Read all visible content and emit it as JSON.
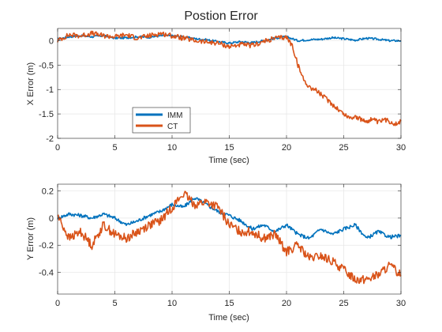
{
  "figure_title": "Postion Error",
  "chart_data": [
    {
      "type": "line",
      "title": "Postion Error",
      "xlabel": "Time (sec)",
      "ylabel": "X Error (m)",
      "xlim": [
        0,
        30
      ],
      "ylim": [
        -2,
        0.25
      ],
      "xticks": [
        0,
        5,
        10,
        15,
        20,
        25,
        30
      ],
      "yticks": [
        -2,
        -1.5,
        -1,
        -0.5,
        0
      ],
      "xtick_labels": [
        "0",
        "5",
        "10",
        "15",
        "20",
        "25",
        "30"
      ],
      "ytick_labels": [
        "-2",
        "-1.5",
        "-1",
        "-0.5",
        "0"
      ],
      "grid": true,
      "legend": {
        "placement": "lower-left",
        "entries": [
          "IMM",
          "CT"
        ]
      },
      "series": [
        {
          "name": "IMM",
          "color": "#0072BD",
          "x": [
            0,
            1,
            2,
            3,
            4,
            5,
            6,
            7,
            8,
            9,
            10,
            11,
            12,
            13,
            14,
            15,
            16,
            17,
            18,
            19,
            20,
            21,
            22,
            23,
            24,
            25,
            26,
            27,
            28,
            29,
            30
          ],
          "y": [
            0.03,
            0.08,
            0.1,
            0.08,
            0.1,
            0.05,
            0.06,
            0.08,
            0.07,
            0.1,
            0.1,
            0.08,
            0.04,
            0.02,
            -0.02,
            -0.05,
            -0.02,
            -0.04,
            0.0,
            0.05,
            0.08,
            0.0,
            0.02,
            0.03,
            0.06,
            0.04,
            0.01,
            0.05,
            0.03,
            0.0,
            0.0
          ]
        },
        {
          "name": "CT",
          "color": "#D95319",
          "x": [
            0,
            1,
            2,
            3,
            4,
            5,
            6,
            7,
            8,
            9,
            10,
            11,
            12,
            13,
            14,
            15,
            16,
            17,
            18,
            19,
            20,
            20.5,
            21,
            21.5,
            22,
            22.5,
            23,
            23.5,
            24,
            24.5,
            25,
            25.5,
            26,
            26.5,
            27,
            27.5,
            28,
            28.5,
            29,
            29.5,
            30
          ],
          "y": [
            0.0,
            0.12,
            0.1,
            0.15,
            0.1,
            0.08,
            0.12,
            0.05,
            0.1,
            0.15,
            0.1,
            0.05,
            0.0,
            -0.03,
            -0.05,
            -0.12,
            -0.08,
            -0.1,
            -0.02,
            0.05,
            0.07,
            -0.1,
            -0.5,
            -0.8,
            -0.95,
            -1.0,
            -1.1,
            -1.2,
            -1.3,
            -1.4,
            -1.5,
            -1.58,
            -1.55,
            -1.62,
            -1.65,
            -1.6,
            -1.68,
            -1.62,
            -1.65,
            -1.7,
            -1.65
          ]
        }
      ]
    },
    {
      "type": "line",
      "title": "",
      "xlabel": "Time (sec)",
      "ylabel": "Y Error (m)",
      "xlim": [
        0,
        30
      ],
      "ylim": [
        -0.56,
        0.25
      ],
      "xticks": [
        0,
        5,
        10,
        15,
        20,
        25,
        30
      ],
      "yticks": [
        -0.4,
        -0.2,
        0,
        0.2
      ],
      "xtick_labels": [
        "0",
        "5",
        "10",
        "15",
        "20",
        "25",
        "30"
      ],
      "ytick_labels": [
        "-0.4",
        "-0.2",
        "0",
        "0.2"
      ],
      "grid": true,
      "series": [
        {
          "name": "IMM",
          "color": "#0072BD",
          "x": [
            0,
            1,
            2,
            3,
            4,
            5,
            6,
            7,
            8,
            9,
            10,
            11,
            12,
            13,
            14,
            15,
            16,
            17,
            18,
            19,
            20,
            21,
            22,
            23,
            24,
            25,
            26,
            27,
            28,
            29,
            30
          ],
          "y": [
            0.0,
            0.03,
            0.02,
            0.0,
            0.03,
            0.0,
            -0.05,
            -0.02,
            0.02,
            0.05,
            0.1,
            0.08,
            0.15,
            0.1,
            0.05,
            0.02,
            -0.02,
            -0.08,
            -0.05,
            -0.1,
            -0.05,
            -0.12,
            -0.15,
            -0.08,
            -0.12,
            -0.08,
            -0.05,
            -0.15,
            -0.1,
            -0.14,
            -0.13
          ]
        },
        {
          "name": "CT",
          "color": "#D95319",
          "x": [
            0,
            1,
            2,
            3,
            4,
            5,
            6,
            7,
            8,
            9,
            10,
            11,
            12,
            13,
            14,
            15,
            16,
            17,
            18,
            19,
            20,
            21,
            22,
            23,
            24,
            25,
            26,
            27,
            28,
            29,
            30
          ],
          "y": [
            0.02,
            -0.15,
            -0.1,
            -0.2,
            -0.05,
            -0.12,
            -0.15,
            -0.1,
            -0.05,
            -0.02,
            0.08,
            0.18,
            0.1,
            0.12,
            0.08,
            -0.05,
            -0.1,
            -0.1,
            -0.15,
            -0.12,
            -0.25,
            -0.2,
            -0.3,
            -0.28,
            -0.32,
            -0.38,
            -0.45,
            -0.45,
            -0.42,
            -0.35,
            -0.42
          ]
        }
      ]
    }
  ]
}
